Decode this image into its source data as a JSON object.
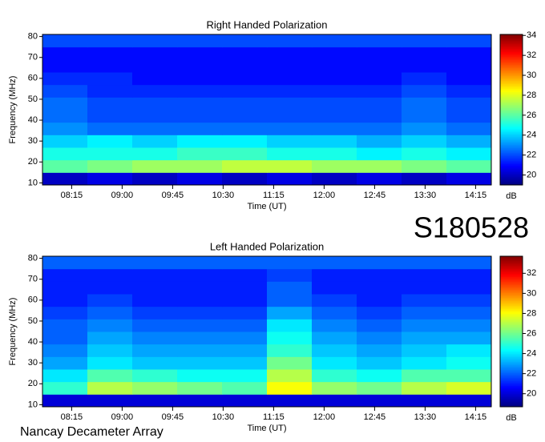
{
  "label": "S180528",
  "footer": "Nancay Decameter Array",
  "chart_data": [
    {
      "type": "heatmap",
      "title": "Right Handed Polarization",
      "xlabel": "Time (UT)",
      "ylabel": "Frequency (MHz)",
      "colorbar_label": "dB",
      "colormap": "jet",
      "xlim": [
        469,
        869
      ],
      "ylim": [
        9,
        81
      ],
      "xticks": [
        {
          "value": 495,
          "label": "08:15"
        },
        {
          "value": 540,
          "label": "09:00"
        },
        {
          "value": 585,
          "label": "09:45"
        },
        {
          "value": 630,
          "label": "10:30"
        },
        {
          "value": 675,
          "label": "11:15"
        },
        {
          "value": 720,
          "label": "12:00"
        },
        {
          "value": 765,
          "label": "12:45"
        },
        {
          "value": 810,
          "label": "13:30"
        },
        {
          "value": 855,
          "label": "14:15"
        }
      ],
      "yticks": [
        10,
        20,
        30,
        40,
        50,
        60,
        70,
        80
      ],
      "zlim": [
        19,
        34.1
      ],
      "zticks": [
        20,
        22,
        24,
        26,
        28,
        30,
        32,
        34
      ],
      "xbins": [
        469,
        509,
        549,
        589,
        629,
        669,
        709,
        749,
        789,
        829,
        869
      ],
      "ybins": [
        9,
        15,
        21,
        27,
        33,
        39,
        45,
        51,
        57,
        63,
        69,
        75,
        81
      ],
      "z": [
        [
          20,
          20.5,
          20,
          20.5,
          20,
          20.5,
          20,
          20.5,
          20,
          20.5
        ],
        [
          26,
          26.5,
          27,
          27,
          27.5,
          27.5,
          27,
          27,
          26.5,
          26
        ],
        [
          25,
          25,
          25,
          25.5,
          25.5,
          25,
          25,
          24.5,
          25,
          24.5
        ],
        [
          24,
          24.5,
          24,
          24.5,
          24.5,
          24,
          24,
          23.5,
          24,
          23.5
        ],
        [
          23,
          22.5,
          22.5,
          22.5,
          22.5,
          22.5,
          22.5,
          22.5,
          23,
          22.5
        ],
        [
          22.5,
          22,
          22,
          22,
          22,
          22,
          22,
          22,
          22.5,
          22
        ],
        [
          22.5,
          22,
          22,
          22,
          22,
          22,
          22,
          22,
          22.5,
          22
        ],
        [
          22,
          21.5,
          21.5,
          21.5,
          21.5,
          21.5,
          21.5,
          21.5,
          22,
          21.5
        ],
        [
          21.5,
          21.5,
          21,
          21,
          21,
          21,
          21,
          21,
          21.5,
          21
        ],
        [
          21,
          21,
          21,
          21,
          21,
          21,
          21,
          21,
          21,
          21
        ],
        [
          21,
          21,
          21,
          21,
          21,
          21,
          21,
          21,
          21,
          21
        ],
        [
          22,
          22,
          22,
          22,
          22,
          22,
          22,
          22,
          22,
          22
        ]
      ]
    },
    {
      "type": "heatmap",
      "title": "Left Handed Polarization",
      "xlabel": "Time (UT)",
      "ylabel": "Frequency (MHz)",
      "colorbar_label": "dB",
      "colormap": "jet",
      "xlim": [
        469,
        869
      ],
      "ylim": [
        9,
        81
      ],
      "xticks": [
        {
          "value": 495,
          "label": "08:15"
        },
        {
          "value": 540,
          "label": "09:00"
        },
        {
          "value": 585,
          "label": "09:45"
        },
        {
          "value": 630,
          "label": "10:30"
        },
        {
          "value": 675,
          "label": "11:15"
        },
        {
          "value": 720,
          "label": "12:00"
        },
        {
          "value": 765,
          "label": "12:45"
        },
        {
          "value": 810,
          "label": "13:30"
        },
        {
          "value": 855,
          "label": "14:15"
        }
      ],
      "yticks": [
        10,
        20,
        30,
        40,
        50,
        60,
        70,
        80
      ],
      "zlim": [
        18.7,
        33.7
      ],
      "zticks": [
        20,
        22,
        24,
        26,
        28,
        30,
        32
      ],
      "xbins": [
        469,
        509,
        549,
        589,
        629,
        669,
        709,
        749,
        789,
        829,
        869
      ],
      "ybins": [
        9,
        15,
        21,
        27,
        33,
        39,
        45,
        51,
        57,
        63,
        69,
        75,
        81
      ],
      "z": [
        [
          20,
          20,
          20,
          20,
          20,
          20,
          20,
          20,
          20,
          20
        ],
        [
          25,
          27,
          26.5,
          26,
          25.5,
          28,
          26.5,
          26,
          27,
          27.5
        ],
        [
          24,
          25.5,
          25,
          24.5,
          24.5,
          27,
          25,
          24.5,
          25.5,
          25.5
        ],
        [
          23,
          24,
          23.5,
          23.5,
          23.5,
          26,
          24,
          23.5,
          24,
          24.5
        ],
        [
          22.5,
          23.5,
          23,
          23,
          23,
          25,
          23.5,
          23,
          23.5,
          24
        ],
        [
          22,
          23,
          22.5,
          22.5,
          22.5,
          24.5,
          23,
          22.5,
          23,
          23
        ],
        [
          22,
          22.5,
          22,
          22,
          22,
          24,
          22.5,
          22,
          22.5,
          22.5
        ],
        [
          21.5,
          22,
          21.5,
          21.5,
          21.5,
          23,
          22,
          21.5,
          22,
          22
        ],
        [
          21,
          21.5,
          21,
          21,
          21,
          22,
          21.5,
          21,
          21.5,
          21.5
        ],
        [
          21,
          21,
          21,
          21,
          21,
          22,
          21,
          21,
          21,
          21
        ],
        [
          21,
          21,
          21,
          21,
          21,
          21.5,
          21,
          21,
          21,
          21
        ],
        [
          22,
          22,
          22,
          22,
          22,
          22,
          22,
          22,
          22,
          22
        ]
      ]
    }
  ]
}
